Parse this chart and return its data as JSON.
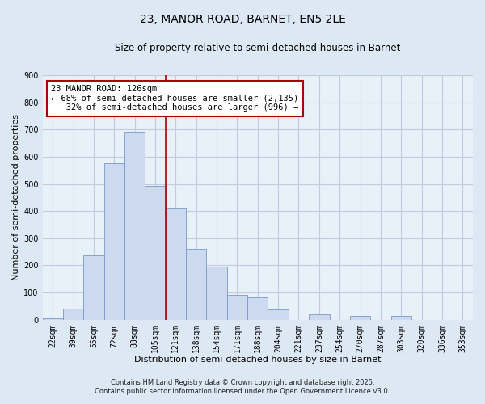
{
  "title": "23, MANOR ROAD, BARNET, EN5 2LE",
  "subtitle": "Size of property relative to semi-detached houses in Barnet",
  "xlabel": "Distribution of semi-detached houses by size in Barnet",
  "ylabel": "Number of semi-detached properties",
  "footnote1": "Contains HM Land Registry data © Crown copyright and database right 2025.",
  "footnote2": "Contains public sector information licensed under the Open Government Licence v3.0.",
  "bin_labels": [
    "22sqm",
    "39sqm",
    "55sqm",
    "72sqm",
    "88sqm",
    "105sqm",
    "121sqm",
    "138sqm",
    "154sqm",
    "171sqm",
    "188sqm",
    "204sqm",
    "221sqm",
    "237sqm",
    "254sqm",
    "270sqm",
    "287sqm",
    "303sqm",
    "320sqm",
    "336sqm",
    "353sqm"
  ],
  "bar_heights": [
    5,
    40,
    237,
    575,
    693,
    493,
    411,
    260,
    195,
    90,
    83,
    38,
    0,
    20,
    0,
    13,
    0,
    13,
    0,
    0,
    0
  ],
  "bar_color": "#ccd9ee",
  "bar_edge_color": "#7799cc",
  "property_label": "23 MANOR ROAD: 126sqm",
  "pct_smaller": 68,
  "n_smaller": 2135,
  "pct_larger": 32,
  "n_larger": 996,
  "vline_x": 5.5,
  "vline_color": "#aa0000",
  "annotation_box_color": "#ffffff",
  "annotation_box_edge": "#aa0000",
  "ylim": [
    0,
    900
  ],
  "yticks": [
    0,
    100,
    200,
    300,
    400,
    500,
    600,
    700,
    800,
    900
  ],
  "bg_color": "#dde8f5",
  "plot_bg_color": "#e8f0f8",
  "grid_color": "#c0ccdc",
  "title_fontsize": 10,
  "subtitle_fontsize": 8.5,
  "axis_label_fontsize": 8,
  "tick_fontsize": 7,
  "footnote_fontsize": 6
}
